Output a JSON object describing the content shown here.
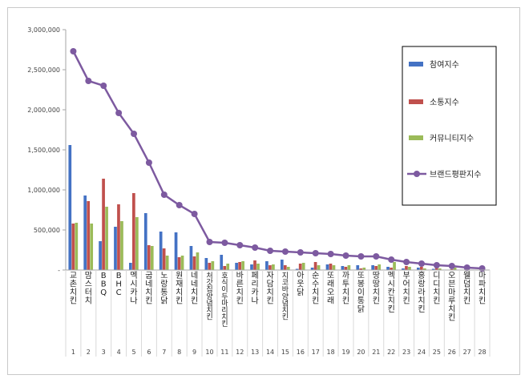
{
  "chart_data": {
    "type": "bar",
    "title": "",
    "xlabel": "",
    "ylabel": "",
    "ylim": [
      0,
      3000000
    ],
    "yticks": [
      0,
      500000,
      1000000,
      1500000,
      2000000,
      2500000,
      3000000
    ],
    "ytick_labels": [
      "-",
      "500,000",
      "1,000,000",
      "1,500,000",
      "2,000,000",
      "2,500,000",
      "3,000,000"
    ],
    "grid": false,
    "legend_position": "right",
    "categories": [
      "교촌치킨",
      "맘스터치",
      "BBQ",
      "BHC",
      "멕시카나",
      "굽네치킨",
      "노랑통닭",
      "원재치킨",
      "네네치킨",
      "처갓집양념치킨",
      "호식이두마리치킨",
      "바른치킨",
      "페리카나",
      "자담치킨",
      "지코바양념치킨",
      "아웃닭",
      "순수치킨",
      "또래오래",
      "까투치킨",
      "또봉이통닭",
      "땅땅치킨",
      "멕시칸치킨",
      "부어치킨",
      "홍랑라치킨",
      "디디치킨",
      "오븐마루치킨",
      "웰덤치킨",
      "마파치킨"
    ],
    "index_labels": [
      "1",
      "2",
      "3",
      "4",
      "5",
      "6",
      "7",
      "8",
      "9",
      "10",
      "11",
      "12",
      "13",
      "14",
      "15",
      "16",
      "17",
      "18",
      "19",
      "20",
      "21",
      "22",
      "23",
      "24",
      "25",
      "26",
      "27",
      "28"
    ],
    "series": [
      {
        "name": "참여지수",
        "kind": "bar",
        "color": "#4472c4",
        "values": [
          1560000,
          930000,
          360000,
          540000,
          90000,
          710000,
          480000,
          470000,
          300000,
          150000,
          190000,
          90000,
          70000,
          110000,
          130000,
          15000,
          30000,
          70000,
          50000,
          60000,
          60000,
          40000,
          20000,
          30000,
          15000,
          5000,
          5000,
          3000
        ]
      },
      {
        "name": "소통지수",
        "kind": "bar",
        "color": "#c0504d",
        "values": [
          580000,
          860000,
          1140000,
          820000,
          960000,
          310000,
          270000,
          160000,
          170000,
          90000,
          50000,
          100000,
          120000,
          60000,
          60000,
          80000,
          100000,
          80000,
          40000,
          20000,
          50000,
          30000,
          50000,
          40000,
          30000,
          10000,
          20000,
          10000
        ]
      },
      {
        "name": "커뮤니티지수",
        "kind": "bar",
        "color": "#9bbb59",
        "values": [
          590000,
          580000,
          790000,
          610000,
          660000,
          300000,
          180000,
          180000,
          220000,
          110000,
          80000,
          110000,
          80000,
          70000,
          40000,
          90000,
          60000,
          60000,
          60000,
          30000,
          70000,
          100000,
          40000,
          20000,
          20000,
          30000,
          5000,
          5000
        ]
      },
      {
        "name": "브랜드평판지수",
        "kind": "line",
        "color": "#7d5aa0",
        "values": [
          2730000,
          2360000,
          2300000,
          1960000,
          1700000,
          1340000,
          940000,
          810000,
          700000,
          350000,
          340000,
          310000,
          280000,
          240000,
          230000,
          220000,
          210000,
          200000,
          180000,
          170000,
          170000,
          130000,
          100000,
          80000,
          60000,
          50000,
          30000,
          20000
        ]
      }
    ]
  }
}
